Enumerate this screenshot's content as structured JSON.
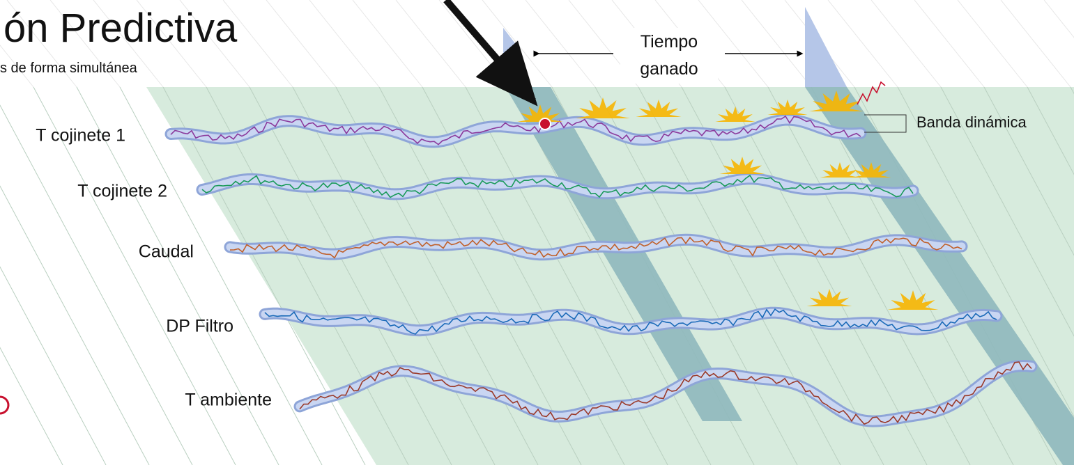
{
  "header": {
    "title": "ón Predictiva",
    "subtitle": "s de forma simultánea"
  },
  "annotations": {
    "time_gained": [
      "Tiempo",
      "ganado"
    ],
    "dynamic_band": "Banda dinámica"
  },
  "signals": [
    "T cojinete 1",
    "T cojinete 2",
    "Caudal",
    "DP Filtro",
    "T ambiente"
  ]
}
